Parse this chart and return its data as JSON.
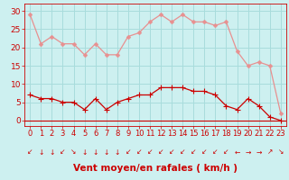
{
  "hours": [
    0,
    1,
    2,
    3,
    4,
    5,
    6,
    7,
    8,
    9,
    10,
    11,
    12,
    13,
    14,
    15,
    16,
    17,
    18,
    19,
    20,
    21,
    22,
    23
  ],
  "wind_avg": [
    7,
    6,
    6,
    5,
    5,
    3,
    6,
    3,
    5,
    6,
    7,
    7,
    9,
    9,
    9,
    8,
    8,
    7,
    4,
    3,
    6,
    4,
    1,
    0
  ],
  "wind_gust": [
    29,
    21,
    23,
    21,
    21,
    18,
    21,
    18,
    18,
    23,
    24,
    27,
    29,
    27,
    29,
    27,
    27,
    26,
    27,
    19,
    15,
    16,
    15,
    2
  ],
  "bg_color": "#cdf0f0",
  "grid_color": "#a8dcdc",
  "line_avg_color": "#cc0000",
  "line_gust_color": "#e89090",
  "marker_size": 2.5,
  "xlabel": "Vent moyen/en rafales ( km/h )",
  "xlabel_color": "#cc0000",
  "xlabel_fontsize": 7.5,
  "tick_color": "#cc0000",
  "tick_fontsize": 6,
  "ytick_fontsize": 6.5,
  "yticks": [
    0,
    5,
    10,
    15,
    20,
    25,
    30
  ],
  "ylim": [
    -1.5,
    32
  ],
  "xlim": [
    -0.5,
    23.5
  ],
  "direction_chars": [
    "↙",
    "↓",
    "↓",
    "↙",
    "↘",
    "↓",
    "↓",
    "↓",
    "↓",
    "↙",
    "↙",
    "↙",
    "↙",
    "↙",
    "↙",
    "↙",
    "↙",
    "↙",
    "↙",
    "←",
    "→",
    "→",
    "↗",
    "↘"
  ]
}
